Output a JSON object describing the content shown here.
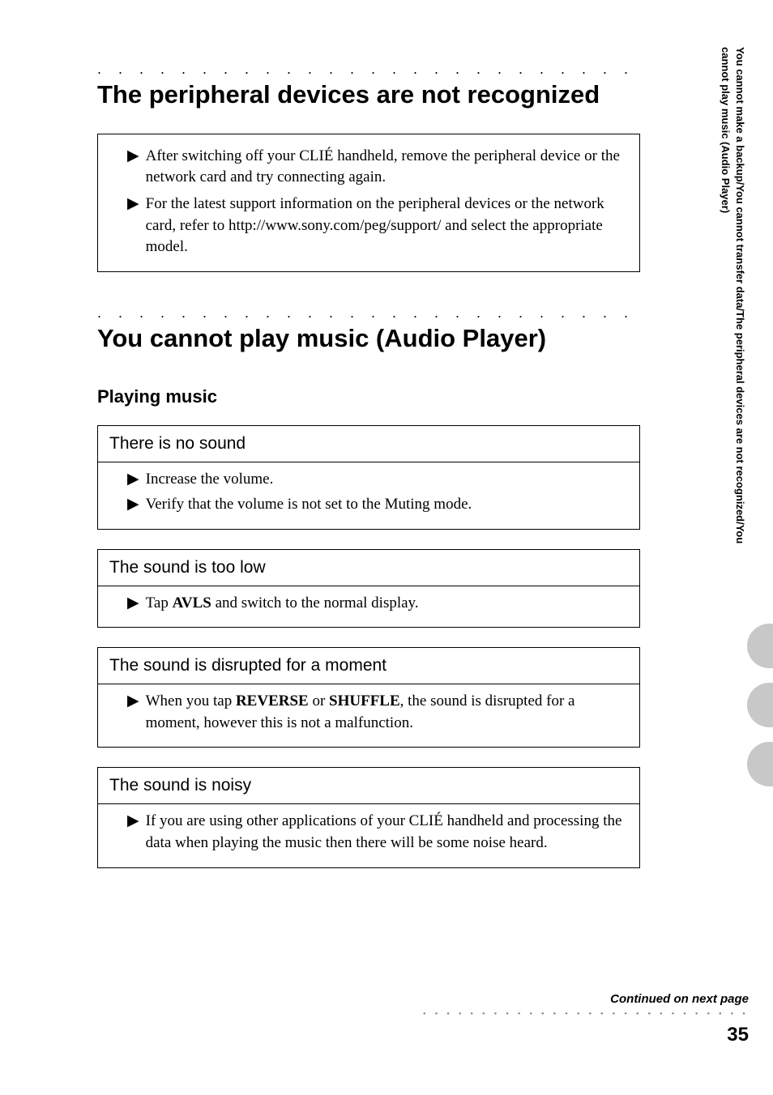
{
  "sidebar": {
    "text": "You cannot make a backup/You cannot transfer data/The peripheral devices are not recognized/You cannot play music (Audio Player)"
  },
  "section1": {
    "heading": "The peripheral devices are not recognized",
    "bullets": [
      "After switching off your CLIÉ handheld, remove the peripheral device or the network card and try connecting again.",
      "For the latest support information on the peripheral devices or the network card, refer to http://www.sony.com/peg/support/ and select the appropriate model."
    ]
  },
  "section2": {
    "heading": "You cannot play music (Audio Player)",
    "subheading": "Playing music",
    "items": [
      {
        "title": "There is no sound",
        "bullets": [
          {
            "pre": "Increase the volume.",
            "bold": "",
            "post": ""
          },
          {
            "pre": "Verify that the volume is not set to the Muting mode.",
            "bold": "",
            "post": ""
          }
        ]
      },
      {
        "title": "The sound is too low",
        "bullets": [
          {
            "pre": "Tap ",
            "bold": "AVLS",
            "post": " and switch to the normal display."
          }
        ]
      },
      {
        "title": "The sound is disrupted for a moment",
        "bullets": [
          {
            "pre": "When you tap ",
            "bold": "REVERSE",
            "post": " or ",
            "bold2": "SHUFFLE",
            "post2": ", the sound is disrupted for a moment, however this is not a malfunction."
          }
        ]
      },
      {
        "title": "The sound is noisy",
        "bullets": [
          {
            "pre": "If you are using other applications of your CLIÉ handheld and processing the data when playing the music then there will be some noise heard.",
            "bold": "",
            "post": ""
          }
        ]
      }
    ]
  },
  "footer": {
    "continued": "Continued on next page",
    "page": "35"
  },
  "style": {
    "dots": ". . . . . . . . . . . . . . . . . . . . . . . . . . . . . . . . . . . . . . . . . . . . .",
    "footer_dots": "• • • • • • • • • • • • • • • • • • • • • • • • • • • •",
    "arrow": "▶"
  }
}
